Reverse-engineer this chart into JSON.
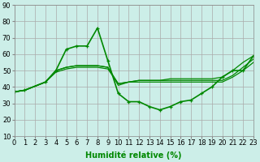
{
  "title": "",
  "xlabel": "Humidité relative (%)",
  "ylabel": "",
  "background_color": "#cceee8",
  "grid_color": "#aaaaaa",
  "line_color": "#008800",
  "series": [
    {
      "x": [
        0,
        1,
        3,
        4,
        5,
        6,
        7,
        8,
        9,
        10,
        11,
        12,
        13,
        14,
        15,
        16,
        17,
        18,
        19,
        20,
        21,
        22,
        23
      ],
      "y": [
        37,
        38,
        43,
        50,
        63,
        65,
        65,
        76,
        56,
        36,
        31,
        31,
        28,
        26,
        28,
        31,
        32,
        36,
        40,
        46,
        50,
        50,
        59
      ],
      "marker": true,
      "lw": 1.2
    },
    {
      "x": [
        0,
        1,
        3,
        4,
        5,
        6,
        7,
        8,
        9,
        10,
        11,
        12,
        13,
        14,
        15,
        16,
        17,
        18,
        19,
        20,
        21,
        22,
        23
      ],
      "y": [
        37,
        38,
        43,
        50,
        52,
        53,
        53,
        53,
        52,
        41,
        43,
        44,
        44,
        44,
        45,
        45,
        45,
        45,
        45,
        46,
        50,
        55,
        59
      ],
      "marker": false,
      "lw": 0.9
    },
    {
      "x": [
        0,
        1,
        3,
        4,
        5,
        6,
        7,
        8,
        9,
        10,
        11,
        12,
        13,
        14,
        15,
        16,
        17,
        18,
        19,
        20,
        21,
        22,
        23
      ],
      "y": [
        37,
        38,
        43,
        50,
        52,
        53,
        53,
        53,
        52,
        42,
        43,
        44,
        44,
        44,
        44,
        44,
        44,
        44,
        44,
        44,
        47,
        52,
        57
      ],
      "marker": false,
      "lw": 0.9
    },
    {
      "x": [
        0,
        1,
        3,
        4,
        5,
        6,
        7,
        8,
        9,
        10,
        11,
        12,
        13,
        14,
        15,
        16,
        17,
        18,
        19,
        20,
        21,
        22,
        23
      ],
      "y": [
        37,
        38,
        43,
        49,
        51,
        52,
        52,
        52,
        51,
        42,
        43,
        43,
        43,
        43,
        43,
        43,
        43,
        43,
        43,
        43,
        46,
        50,
        55
      ],
      "marker": false,
      "lw": 0.9
    }
  ],
  "xlim": [
    0,
    23
  ],
  "ylim": [
    10,
    90
  ],
  "yticks": [
    10,
    20,
    30,
    40,
    50,
    60,
    70,
    80,
    90
  ],
  "xticks": [
    0,
    1,
    2,
    3,
    4,
    5,
    6,
    7,
    8,
    9,
    10,
    11,
    12,
    13,
    14,
    15,
    16,
    17,
    18,
    19,
    20,
    21,
    22,
    23
  ],
  "xlabel_fontsize": 7,
  "tick_fontsize": 6,
  "xlabel_bold": true
}
